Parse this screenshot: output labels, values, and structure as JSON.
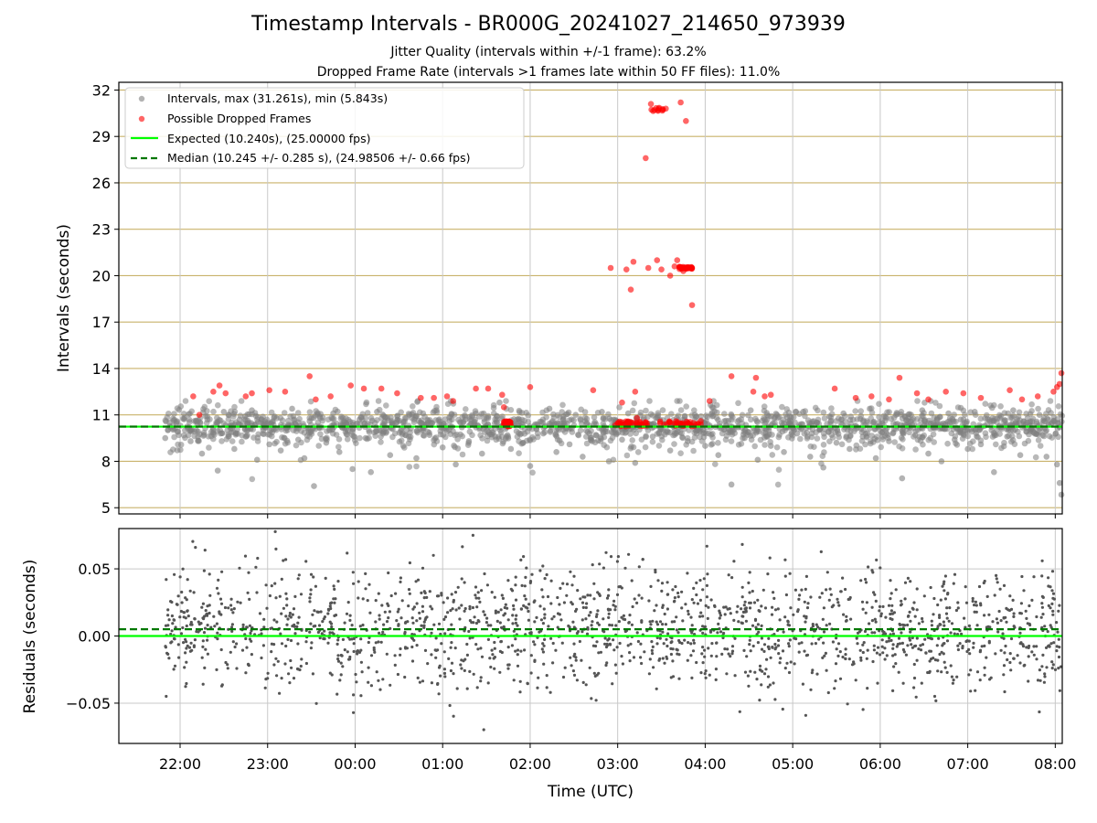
{
  "figure": {
    "title": "Timestamp Intervals - BR000G_20241027_214650_973939",
    "subtitle_1": "Jitter Quality (intervals within +/-1 frame): 63.2%",
    "subtitle_2": "Dropped Frame Rate (intervals >1 frames late within 50 FF files): 11.0%",
    "xlabel": "Time (UTC)"
  },
  "chart_data": [
    {
      "type": "scatter",
      "panel": "intervals",
      "ylabel": "Intervals (seconds)",
      "yticks": [
        5,
        8,
        11,
        14,
        17,
        20,
        23,
        26,
        29,
        32
      ],
      "ylim": [
        4.6,
        32.5
      ],
      "xlim_hours": [
        21.3,
        32.08
      ],
      "xtick_hours": [
        22,
        23,
        24,
        25,
        26,
        27,
        28,
        29,
        30,
        31,
        32
      ],
      "xtick_labels": [
        "22:00",
        "23:00",
        "00:00",
        "01:00",
        "02:00",
        "03:00",
        "04:00",
        "05:00",
        "06:00",
        "07:00",
        "08:00"
      ],
      "grid": true,
      "legend_position": "upper-left",
      "expected_interval": 10.24,
      "median_interval": 10.245,
      "max_interval": 31.261,
      "min_interval": 5.843,
      "series": [
        {
          "name": "Intervals, max (31.261s), min (5.843s)",
          "color": "#808080",
          "points": [
            [
              21.83,
              9.5
            ],
            [
              21.88,
              10.5
            ],
            [
              21.92,
              10.1
            ],
            [
              21.97,
              9.9
            ],
            [
              22.05,
              10.8
            ],
            [
              22.12,
              9.3
            ],
            [
              22.18,
              10.6
            ],
            [
              22.25,
              8.5
            ],
            [
              22.31,
              10.9
            ],
            [
              22.38,
              9.8
            ],
            [
              22.43,
              7.4
            ],
            [
              22.5,
              11.2
            ],
            [
              22.56,
              10.3
            ],
            [
              22.62,
              8.8
            ],
            [
              22.68,
              10.7
            ],
            [
              22.75,
              9.6
            ],
            [
              22.82,
              11.3
            ],
            [
              22.88,
              8.1
            ],
            [
              22.95,
              10.4
            ],
            [
              23.02,
              9.1
            ],
            [
              23.08,
              10.9
            ],
            [
              23.15,
              8.7
            ],
            [
              23.22,
              10.2
            ],
            [
              23.28,
              11.4
            ],
            [
              23.35,
              9.4
            ],
            [
              23.42,
              8.2
            ],
            [
              23.48,
              10.6
            ],
            [
              23.53,
              6.4
            ],
            [
              23.6,
              10.8
            ],
            [
              23.67,
              9.2
            ],
            [
              23.75,
              11.1
            ],
            [
              23.82,
              8.6
            ],
            [
              23.9,
              10.3
            ],
            [
              23.97,
              7.5
            ],
            [
              24.05,
              10.7
            ],
            [
              24.12,
              9.5
            ],
            [
              24.18,
              7.3
            ],
            [
              24.25,
              11.2
            ],
            [
              24.32,
              9.9
            ],
            [
              24.4,
              8.4
            ],
            [
              24.47,
              10.5
            ],
            [
              24.55,
              9.0
            ],
            [
              24.62,
              11.0
            ],
            [
              24.7,
              8.2
            ],
            [
              24.78,
              10.4
            ],
            [
              24.85,
              9.7
            ],
            [
              24.93,
              11.3
            ],
            [
              25.0,
              8.9
            ],
            [
              25.08,
              10.6
            ],
            [
              25.15,
              7.8
            ],
            [
              25.22,
              10.2
            ],
            [
              25.3,
              9.3
            ],
            [
              25.38,
              11.1
            ],
            [
              25.45,
              8.5
            ],
            [
              25.52,
              10.8
            ],
            [
              25.6,
              9.6
            ],
            [
              25.65,
              11.8
            ],
            [
              25.72,
              10.1
            ],
            [
              25.78,
              8.8
            ],
            [
              25.85,
              10.7
            ],
            [
              25.92,
              9.2
            ],
            [
              26.0,
              7.7
            ],
            [
              26.08,
              10.4
            ],
            [
              26.15,
              9.8
            ],
            [
              26.22,
              11.4
            ],
            [
              26.3,
              8.6
            ],
            [
              26.38,
              10.9
            ],
            [
              26.45,
              9.1
            ],
            [
              26.52,
              11.0
            ],
            [
              26.6,
              8.3
            ],
            [
              26.68,
              10.3
            ],
            [
              26.75,
              9.7
            ],
            [
              26.82,
              11.2
            ],
            [
              26.9,
              8.0
            ],
            [
              26.98,
              10.6
            ],
            [
              27.05,
              9.4
            ],
            [
              27.12,
              11.1
            ],
            [
              27.2,
              7.9
            ],
            [
              27.3,
              10.8
            ],
            [
              27.4,
              9.6
            ],
            [
              27.5,
              10.1
            ],
            [
              27.6,
              8.7
            ],
            [
              27.7,
              10.4
            ],
            [
              27.8,
              9.3
            ],
            [
              27.9,
              10.9
            ],
            [
              28.0,
              9.0
            ],
            [
              28.08,
              11.5
            ],
            [
              28.15,
              8.4
            ],
            [
              28.22,
              10.6
            ],
            [
              28.3,
              6.5
            ],
            [
              28.38,
              10.2
            ],
            [
              28.45,
              9.5
            ],
            [
              28.52,
              11.3
            ],
            [
              28.6,
              8.1
            ],
            [
              28.68,
              10.7
            ],
            [
              28.75,
              9.0
            ],
            [
              28.82,
              11.0
            ],
            [
              28.9,
              8.6
            ],
            [
              28.98,
              10.4
            ],
            [
              29.05,
              9.8
            ],
            [
              29.12,
              11.2
            ],
            [
              29.2,
              8.3
            ],
            [
              29.28,
              10.5
            ],
            [
              29.35,
              7.6
            ],
            [
              29.42,
              10.9
            ],
            [
              29.5,
              9.2
            ],
            [
              29.58,
              11.1
            ],
            [
              29.65,
              8.8
            ],
            [
              29.72,
              10.3
            ],
            [
              29.8,
              9.6
            ],
            [
              29.88,
              11.4
            ],
            [
              29.95,
              8.2
            ],
            [
              30.02,
              10.6
            ],
            [
              30.1,
              9.3
            ],
            [
              30.18,
              11.0
            ],
            [
              30.25,
              6.9
            ],
            [
              30.32,
              10.8
            ],
            [
              30.4,
              9.7
            ],
            [
              30.48,
              11.3
            ],
            [
              30.55,
              8.5
            ],
            [
              30.62,
              10.2
            ],
            [
              30.7,
              8.0
            ],
            [
              30.78,
              11.1
            ],
            [
              30.85,
              9.4
            ],
            [
              30.92,
              10.7
            ],
            [
              31.0,
              8.8
            ],
            [
              31.08,
              11.2
            ],
            [
              31.15,
              9.1
            ],
            [
              31.22,
              10.4
            ],
            [
              31.3,
              7.3
            ],
            [
              31.38,
              10.9
            ],
            [
              31.45,
              9.6
            ],
            [
              31.52,
              11.3
            ],
            [
              31.6,
              8.4
            ],
            [
              31.68,
              10.5
            ],
            [
              31.75,
              9.9
            ],
            [
              31.82,
              11.0
            ],
            [
              31.9,
              8.3
            ],
            [
              31.98,
              10.6
            ],
            [
              32.02,
              7.8
            ],
            [
              32.05,
              6.6
            ],
            [
              32.07,
              5.843
            ]
          ]
        },
        {
          "name": "Possible Dropped Frames",
          "color": "#ff0000",
          "points": [
            [
              22.15,
              12.2
            ],
            [
              22.22,
              11.0
            ],
            [
              22.38,
              12.5
            ],
            [
              22.45,
              12.9
            ],
            [
              22.52,
              12.4
            ],
            [
              22.75,
              12.2
            ],
            [
              22.82,
              12.4
            ],
            [
              23.02,
              12.6
            ],
            [
              23.2,
              12.5
            ],
            [
              23.48,
              13.5
            ],
            [
              23.55,
              12.0
            ],
            [
              23.72,
              12.2
            ],
            [
              23.95,
              12.9
            ],
            [
              24.1,
              12.7
            ],
            [
              24.3,
              12.7
            ],
            [
              24.48,
              12.4
            ],
            [
              24.75,
              12.1
            ],
            [
              24.9,
              12.1
            ],
            [
              25.05,
              12.2
            ],
            [
              25.12,
              11.9
            ],
            [
              25.38,
              12.7
            ],
            [
              25.52,
              12.7
            ],
            [
              25.68,
              12.3
            ],
            [
              25.7,
              11.5
            ],
            [
              25.75,
              10.5
            ],
            [
              26.0,
              12.8
            ],
            [
              26.72,
              12.6
            ],
            [
              26.92,
              20.5
            ],
            [
              27.05,
              11.8
            ],
            [
              27.1,
              20.4
            ],
            [
              27.15,
              19.1
            ],
            [
              27.18,
              20.9
            ],
            [
              27.2,
              12.5
            ],
            [
              27.22,
              10.8
            ],
            [
              27.32,
              27.6
            ],
            [
              27.35,
              20.5
            ],
            [
              27.38,
              31.1
            ],
            [
              27.42,
              30.7
            ],
            [
              27.45,
              21.0
            ],
            [
              27.5,
              20.4
            ],
            [
              27.55,
              30.8
            ],
            [
              27.6,
              20.0
            ],
            [
              27.65,
              20.6
            ],
            [
              27.68,
              21.0
            ],
            [
              27.72,
              31.2
            ],
            [
              27.75,
              20.3
            ],
            [
              27.78,
              30.0
            ],
            [
              27.82,
              20.5
            ],
            [
              27.85,
              18.1
            ],
            [
              27.88,
              10.3
            ],
            [
              27.95,
              10.4
            ],
            [
              28.05,
              11.9
            ],
            [
              28.3,
              13.5
            ],
            [
              28.55,
              12.5
            ],
            [
              28.58,
              13.4
            ],
            [
              28.68,
              12.2
            ],
            [
              28.75,
              12.3
            ],
            [
              29.48,
              12.7
            ],
            [
              29.72,
              12.1
            ],
            [
              29.9,
              12.2
            ],
            [
              30.1,
              12.0
            ],
            [
              30.22,
              13.4
            ],
            [
              30.42,
              12.4
            ],
            [
              30.55,
              12.0
            ],
            [
              30.75,
              12.5
            ],
            [
              30.95,
              12.4
            ],
            [
              31.15,
              12.1
            ],
            [
              31.48,
              12.6
            ],
            [
              31.62,
              12.0
            ],
            [
              31.8,
              12.2
            ],
            [
              31.98,
              12.5
            ],
            [
              32.02,
              12.8
            ],
            [
              32.05,
              13.0
            ],
            [
              32.07,
              13.7
            ]
          ]
        },
        {
          "name": "Expected (10.240s), (25.00000 fps)",
          "color": "#00ff00",
          "style": "solid",
          "y": 10.24
        },
        {
          "name": "Median (10.245 +/- 0.285 s), (24.98506 +/- 0.66 fps)",
          "color": "#007700",
          "style": "dashed",
          "y": 10.245
        }
      ]
    },
    {
      "type": "scatter",
      "panel": "residuals",
      "ylabel": "Residuals (seconds)",
      "yticks": [
        -0.05,
        0.0,
        0.05
      ],
      "ytick_labels": [
        "−0.05",
        "0.00",
        "0.05"
      ],
      "ylim": [
        -0.08,
        0.08
      ],
      "grid": true,
      "series": [
        {
          "name": "Residuals",
          "color": "#555555",
          "noise_sd": 0.022,
          "time_range_hours": [
            21.83,
            32.08
          ]
        },
        {
          "name": "Expected",
          "color": "#00ff00",
          "style": "solid",
          "y": 0.0
        },
        {
          "name": "Median",
          "color": "#007700",
          "style": "dashed",
          "y": 0.005
        }
      ]
    }
  ]
}
